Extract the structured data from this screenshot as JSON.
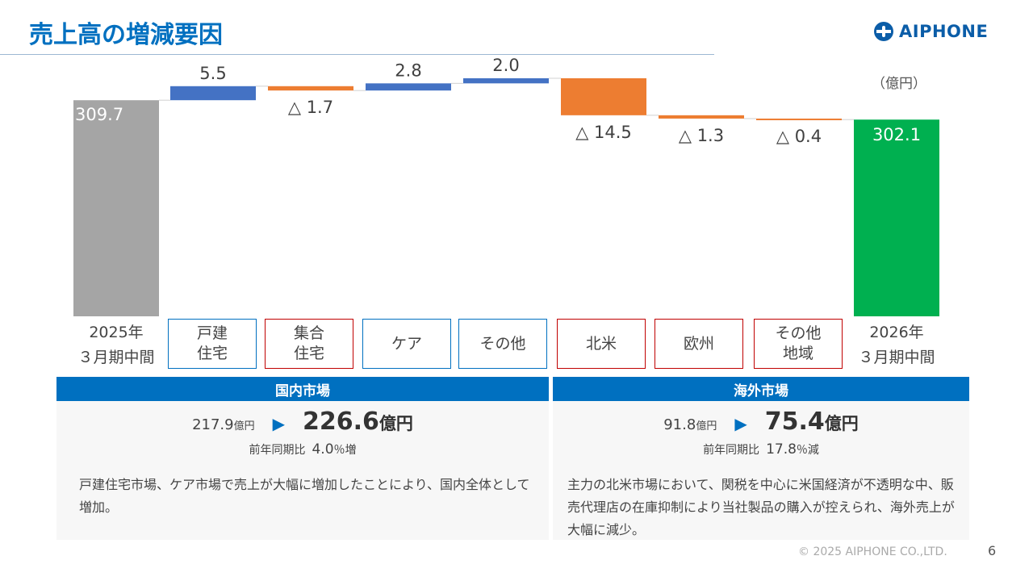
{
  "header": {
    "title": "売上高の増減要因",
    "logo_text": "AIPHONE"
  },
  "chart_data": {
    "type": "waterfall",
    "unit": "（億円）",
    "ylim": [
      225,
      330
    ],
    "start": {
      "label": "2025年\n３月期中間",
      "value": 309.7,
      "value_label": "309.7",
      "color": "#A5A5A5"
    },
    "steps": [
      {
        "label": "戸建\n住宅",
        "delta": 5.5,
        "value_label": "5.5",
        "box": "blue"
      },
      {
        "label": "集合\n住宅",
        "delta": -1.7,
        "value_label": "△ 1.7",
        "box": "red"
      },
      {
        "label": "ケア",
        "delta": 2.8,
        "value_label": "2.8",
        "box": "blue"
      },
      {
        "label": "その他",
        "delta": 2.0,
        "value_label": "2.0",
        "box": "blue"
      },
      {
        "label": "北米",
        "delta": -14.5,
        "value_label": "△ 14.5",
        "box": "red"
      },
      {
        "label": "欧州",
        "delta": -1.3,
        "value_label": "△ 1.3",
        "box": "red"
      },
      {
        "label": "その他\n地域",
        "delta": -0.4,
        "value_label": "△ 0.4",
        "box": "red"
      }
    ],
    "end": {
      "label": "2026年\n３月期中間",
      "value": 302.1,
      "value_label": "302.1",
      "color": "#00B050"
    },
    "colors": {
      "increase": "#4472C4",
      "decrease": "#ED7D31",
      "connector": "#D0D0D0"
    }
  },
  "domestic": {
    "heading": "国内市場",
    "prev_value": "217.9",
    "prev_unit": "億円",
    "arrow": "▶",
    "value": "226.6",
    "unit": "億円",
    "yoy_label": "前年同期比",
    "yoy_value": "4.0",
    "yoy_suffix": "％増",
    "desc": "戸建住宅市場、ケア市場で売上が大幅に増加したことにより、国内全体として増加。"
  },
  "overseas": {
    "heading": "海外市場",
    "prev_value": "91.8",
    "prev_unit": "億円",
    "arrow": "▶",
    "value": "75.4",
    "unit": "億円",
    "yoy_label": "前年同期比",
    "yoy_value": "17.8",
    "yoy_suffix": "％減",
    "desc": "主力の北米市場において、関税を中心に米国経済が不透明な中、販売代理店の在庫抑制により当社製品の購入が控えられ、海外売上が大幅に減少。"
  },
  "footer": {
    "copyright": "© 2025 AIPHONE CO.,LTD.",
    "page_number": "6"
  }
}
